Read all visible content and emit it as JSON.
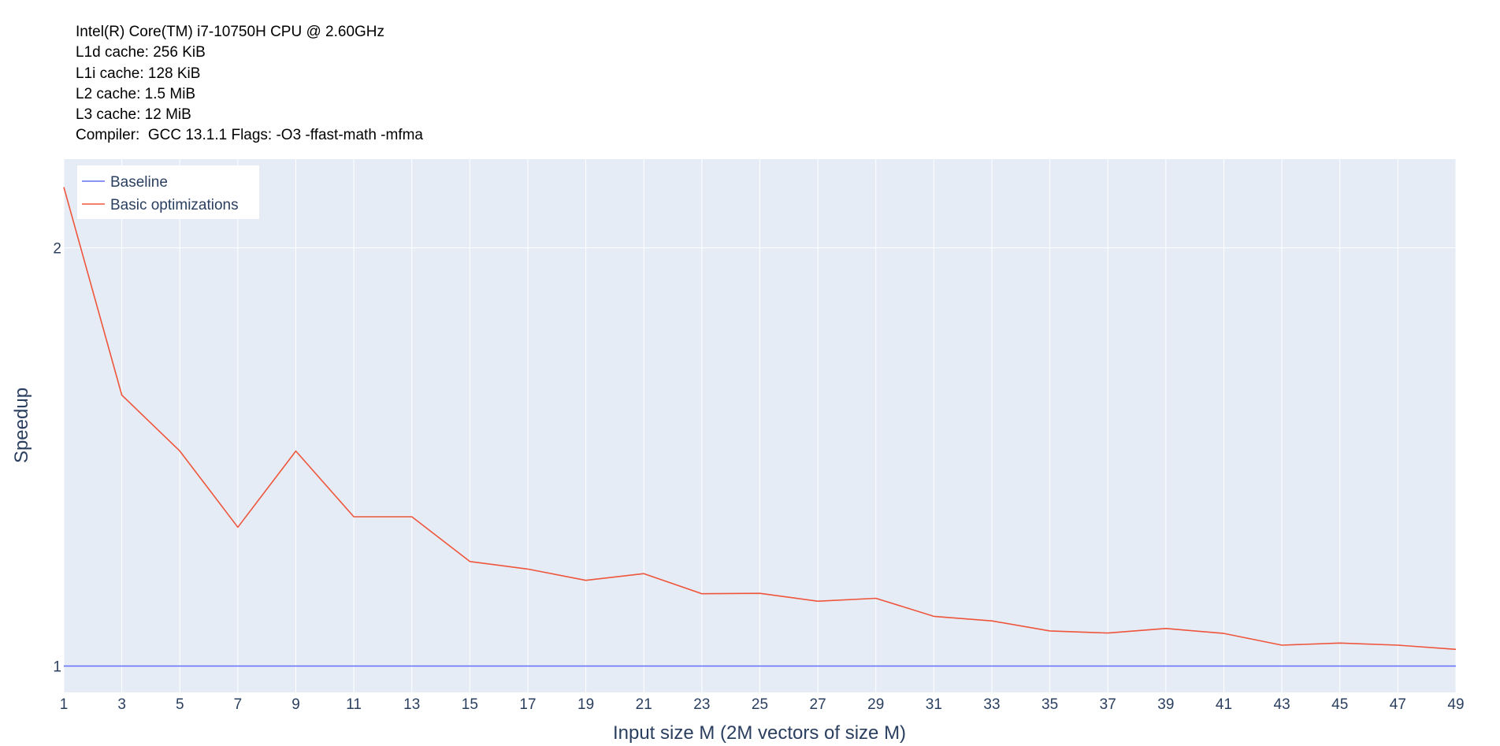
{
  "info_lines": [
    "Intel(R) Core(TM) i7-10750H CPU @ 2.60GHz",
    "L1d cache: 256 KiB",
    "L1i cache: 128 KiB",
    "L2 cache: 1.5 MiB",
    "L3 cache: 12 MiB",
    "Compiler:  GCC 13.1.1 Flags: -O3 -ffast-math -mfma"
  ],
  "chart_data": {
    "type": "line",
    "xlabel": "Input size M (2M vectors of size M)",
    "ylabel": "Speedup",
    "x": [
      1,
      3,
      5,
      7,
      9,
      11,
      13,
      15,
      17,
      19,
      21,
      23,
      25,
      27,
      29,
      31,
      33,
      35,
      37,
      39,
      41,
      43,
      45,
      47,
      49
    ],
    "x_ticks": [
      "1",
      "3",
      "5",
      "7",
      "9",
      "11",
      "13",
      "15",
      "17",
      "19",
      "21",
      "23",
      "25",
      "27",
      "29",
      "31",
      "33",
      "35",
      "37",
      "39",
      "41",
      "43",
      "45",
      "47",
      "49"
    ],
    "y_ticks": [
      {
        "value": 1,
        "label": "1"
      },
      {
        "value": 2,
        "label": "2"
      }
    ],
    "xlim": [
      1,
      49
    ],
    "ylim": [
      0.937,
      2.212
    ],
    "grid": true,
    "legend_position": "top-left",
    "series": [
      {
        "name": "Baseline",
        "color": "#636efa",
        "values": [
          1,
          1,
          1,
          1,
          1,
          1,
          1,
          1,
          1,
          1,
          1,
          1,
          1,
          1,
          1,
          1,
          1,
          1,
          1,
          1,
          1,
          1,
          1,
          1,
          1
        ]
      },
      {
        "name": "Basic optimizations",
        "color": "#ef553b",
        "values": [
          2.145,
          1.648,
          1.514,
          1.332,
          1.514,
          1.357,
          1.357,
          1.25,
          1.232,
          1.205,
          1.221,
          1.173,
          1.174,
          1.155,
          1.162,
          1.119,
          1.108,
          1.084,
          1.079,
          1.09,
          1.078,
          1.05,
          1.055,
          1.05,
          1.04
        ]
      }
    ]
  },
  "colors": {
    "plot_bg": "#e5ecf6",
    "grid": "#ffffff",
    "text": "#2a3f5f"
  }
}
